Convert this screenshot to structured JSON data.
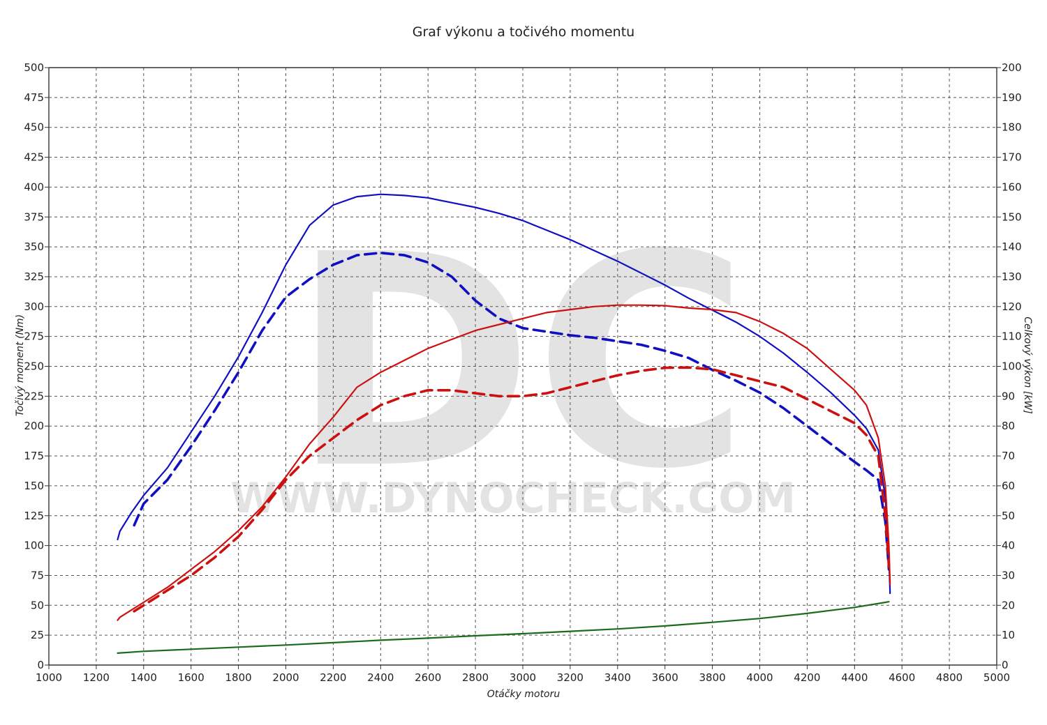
{
  "chart_data": {
    "type": "line",
    "title": "Graf výkonu a točivého momentu",
    "xlabel": "Otáčky motoru",
    "ylabel_left": "Točivý moment (Nm)",
    "ylabel_right": "Celkový výkon [kW]",
    "watermark_logo": "DC",
    "watermark_text": "WWW.DYNOCHECK.COM",
    "xlim": [
      1000,
      5000
    ],
    "ylim_left": [
      0,
      500
    ],
    "ylim_right": [
      0,
      200
    ],
    "x_ticks": [
      "1000",
      "1200",
      "1400",
      "1600",
      "1800",
      "2000",
      "2200",
      "2400",
      "2600",
      "2800",
      "3000",
      "3200",
      "3400",
      "3600",
      "3800",
      "4000",
      "4200",
      "4400",
      "4600",
      "4800",
      "5000"
    ],
    "y_left_ticks": [
      "0",
      "25",
      "50",
      "75",
      "100",
      "125",
      "150",
      "175",
      "200",
      "225",
      "250",
      "275",
      "300",
      "325",
      "350",
      "375",
      "400",
      "425",
      "450",
      "475",
      "500"
    ],
    "y_right_ticks": [
      "0",
      "10",
      "20",
      "30",
      "40",
      "50",
      "60",
      "70",
      "80",
      "90",
      "100",
      "110",
      "120",
      "130",
      "140",
      "150",
      "160",
      "170",
      "180",
      "190",
      "200"
    ],
    "grid": true,
    "colors": {
      "torque": "#1010c0",
      "power": "#cc1010",
      "loss": "#1a6b1a",
      "grid": "#555555"
    },
    "series": [
      {
        "axis": "left",
        "color": "#1010c0",
        "style": "solid",
        "x": [
          1290,
          1300,
          1350,
          1400,
          1500,
          1600,
          1700,
          1800,
          1900,
          2000,
          2100,
          2200,
          2300,
          2400,
          2500,
          2600,
          2700,
          2800,
          2900,
          3000,
          3100,
          3200,
          3300,
          3400,
          3500,
          3600,
          3700,
          3800,
          3900,
          4000,
          4100,
          4200,
          4300,
          4400,
          4450,
          4500,
          4530,
          4545,
          4550
        ],
        "values": [
          105,
          112,
          128,
          142,
          165,
          195,
          225,
          258,
          295,
          335,
          368,
          385,
          392,
          394,
          393,
          391,
          387,
          383,
          378,
          372,
          364,
          356,
          347,
          338,
          328,
          318,
          307,
          297,
          287,
          275,
          261,
          245,
          228,
          209,
          198,
          180,
          140,
          90,
          60
        ]
      },
      {
        "axis": "left",
        "color": "#1010c0",
        "style": "dashed",
        "x": [
          1360,
          1400,
          1500,
          1600,
          1700,
          1800,
          1900,
          2000,
          2100,
          2200,
          2300,
          2400,
          2500,
          2600,
          2700,
          2800,
          2900,
          3000,
          3100,
          3200,
          3300,
          3400,
          3500,
          3600,
          3700,
          3800,
          3900,
          4000,
          4100,
          4200,
          4300,
          4400,
          4450,
          4500,
          4530,
          4545
        ],
        "values": [
          117,
          135,
          155,
          183,
          213,
          245,
          280,
          308,
          323,
          335,
          343,
          345,
          343,
          337,
          325,
          305,
          290,
          282,
          279,
          276,
          274,
          271,
          268,
          263,
          257,
          247,
          238,
          228,
          215,
          200,
          185,
          170,
          163,
          155,
          120,
          80
        ]
      },
      {
        "axis": "right",
        "color": "#cc1010",
        "style": "solid",
        "x": [
          1290,
          1300,
          1400,
          1500,
          1600,
          1700,
          1800,
          1900,
          2000,
          2100,
          2200,
          2300,
          2400,
          2500,
          2600,
          2700,
          2800,
          2900,
          3000,
          3100,
          3200,
          3300,
          3400,
          3500,
          3600,
          3700,
          3800,
          3900,
          4000,
          4100,
          4200,
          4300,
          4400,
          4450,
          4500,
          4530,
          4545,
          4550
        ],
        "values": [
          15,
          16,
          21,
          26,
          32,
          38,
          45,
          53,
          63,
          74,
          83,
          93,
          98,
          102,
          106,
          109,
          112,
          114,
          116,
          118,
          119,
          120,
          120.5,
          120.5,
          120.3,
          119.5,
          119,
          118,
          115,
          111,
          106,
          99,
          92,
          87,
          76,
          60,
          40,
          27
        ]
      },
      {
        "axis": "right",
        "color": "#cc1010",
        "style": "dashed",
        "x": [
          1360,
          1400,
          1500,
          1600,
          1700,
          1800,
          1900,
          2000,
          2100,
          2200,
          2300,
          2400,
          2500,
          2600,
          2700,
          2800,
          2900,
          3000,
          3100,
          3200,
          3300,
          3400,
          3500,
          3600,
          3700,
          3800,
          3900,
          4000,
          4100,
          4200,
          4300,
          4400,
          4450,
          4500,
          4530,
          4545
        ],
        "values": [
          18,
          20,
          25,
          30,
          36,
          43,
          52,
          62,
          70,
          76,
          82,
          87,
          90,
          92,
          92,
          91,
          90,
          90,
          91,
          93,
          95,
          97,
          98.5,
          99.5,
          99.6,
          99,
          97,
          95,
          93,
          89,
          85,
          81,
          77,
          70,
          50,
          33
        ]
      },
      {
        "axis": "right",
        "color": "#1a6b1a",
        "style": "solid",
        "x": [
          1290,
          1400,
          1600,
          1800,
          2000,
          2200,
          2400,
          2600,
          2800,
          3000,
          3200,
          3400,
          3600,
          3800,
          4000,
          4200,
          4400,
          4545
        ],
        "values": [
          4,
          4.6,
          5.3,
          6,
          6.7,
          7.5,
          8.3,
          9,
          9.8,
          10.5,
          11.3,
          12.1,
          13.1,
          14.3,
          15.6,
          17.3,
          19.3,
          21.2
        ]
      }
    ]
  }
}
